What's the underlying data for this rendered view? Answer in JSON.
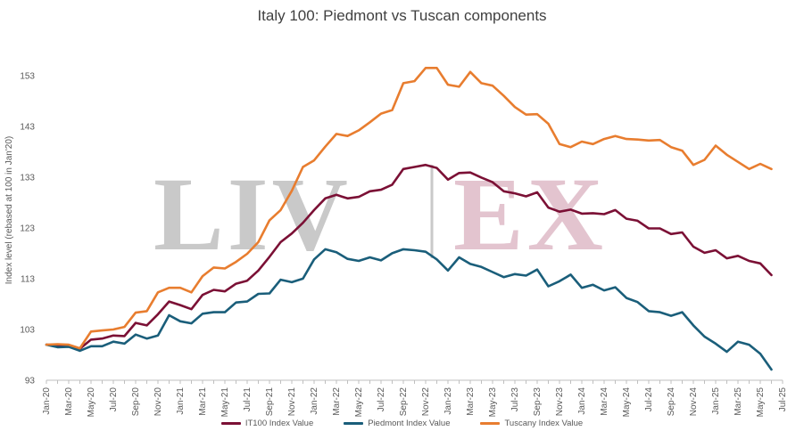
{
  "watermark": {
    "left_text": "LIV",
    "right_text": "EX",
    "left_color": "#c9c9c9",
    "right_color": "#e3c4cf"
  },
  "chart_data": {
    "type": "line",
    "title": "Italy 100: Piedmont vs Tuscan components",
    "xlabel": "",
    "ylabel": "Index level (rebased at 100 in Jan'20)",
    "ylim": [
      93,
      157
    ],
    "yticks": [
      93,
      103,
      113,
      123,
      133,
      143,
      153
    ],
    "grid": false,
    "legend_position": "bottom",
    "x_start": "2020-01",
    "x_end": "2025-07",
    "x_tick_labels": [
      "Jan-20",
      "Mar-20",
      "May-20",
      "Jul-20",
      "Sep-20",
      "Nov-20",
      "Jan-21",
      "Mar-21",
      "May-21",
      "Jul-21",
      "Sep-21",
      "Nov-21",
      "Jan-22",
      "Mar-22",
      "May-22",
      "Jul-22",
      "Sep-22",
      "Nov-22",
      "Jan-23",
      "Mar-23",
      "May-23",
      "Jul-23",
      "Sep-23",
      "Nov-23",
      "Jan-24",
      "Mar-24",
      "May-24",
      "Jul-24",
      "Sep-24",
      "Nov-24",
      "Jan-25",
      "Mar-25",
      "May-25",
      "Jul-25"
    ],
    "series": [
      {
        "name": "IT100 Index Value",
        "color": "#7b1035",
        "values": [
          100.0,
          99.8,
          99.8,
          99.2,
          101.0,
          101.2,
          101.8,
          101.7,
          104.3,
          103.8,
          106.0,
          108.5,
          107.8,
          107.0,
          109.8,
          110.8,
          110.5,
          112.0,
          112.6,
          114.6,
          117.3,
          120.2,
          121.9,
          124.0,
          126.5,
          128.8,
          129.5,
          128.8,
          129.1,
          130.2,
          130.5,
          131.5,
          134.6,
          135.0,
          135.4,
          134.8,
          132.5,
          133.8,
          133.9,
          132.9,
          132.0,
          130.2,
          129.8,
          129.2,
          130.0,
          127.0,
          126.2,
          126.6,
          125.8,
          125.9,
          125.7,
          126.5,
          124.8,
          124.4,
          122.9,
          122.9,
          121.8,
          122.1,
          119.3,
          118.1,
          118.6,
          117.0,
          117.5,
          116.5,
          116.0,
          113.7
        ]
      },
      {
        "name": "Piedmont Index Value",
        "color": "#1a5e7a",
        "values": [
          100.0,
          99.5,
          99.6,
          98.8,
          99.7,
          99.7,
          100.6,
          100.2,
          102.0,
          101.2,
          101.8,
          105.8,
          104.6,
          104.2,
          106.1,
          106.4,
          106.4,
          108.3,
          108.5,
          110.0,
          110.1,
          112.8,
          112.3,
          113.0,
          116.8,
          118.8,
          118.2,
          116.9,
          116.5,
          117.2,
          116.6,
          118.0,
          118.8,
          118.6,
          118.3,
          116.8,
          114.6,
          117.2,
          115.9,
          115.3,
          114.3,
          113.3,
          113.9,
          113.6,
          114.8,
          111.5,
          112.5,
          113.8,
          111.2,
          111.8,
          110.7,
          111.3,
          109.2,
          108.4,
          106.6,
          106.4,
          105.7,
          106.4,
          103.8,
          101.6,
          100.2,
          98.6,
          100.6,
          100.0,
          98.2,
          95.1
        ]
      },
      {
        "name": "Tuscany Index Value",
        "color": "#e87d2f",
        "values": [
          100.0,
          100.1,
          100.0,
          99.3,
          102.6,
          102.8,
          103.0,
          103.5,
          106.3,
          106.6,
          110.3,
          111.2,
          111.2,
          110.3,
          113.5,
          115.2,
          115.0,
          116.3,
          117.9,
          120.2,
          124.5,
          126.5,
          130.3,
          135.0,
          136.3,
          139.0,
          141.5,
          141.1,
          142.2,
          143.8,
          145.5,
          146.2,
          151.5,
          151.9,
          154.5,
          154.5,
          151.2,
          150.8,
          153.7,
          151.5,
          151.0,
          149.0,
          146.8,
          145.3,
          145.4,
          143.5,
          139.5,
          138.9,
          140.0,
          139.5,
          140.5,
          141.1,
          140.5,
          140.4,
          140.2,
          140.3,
          138.9,
          138.2,
          135.4,
          136.4,
          139.2,
          137.4,
          136.0,
          134.6,
          135.6,
          134.6
        ]
      }
    ]
  }
}
